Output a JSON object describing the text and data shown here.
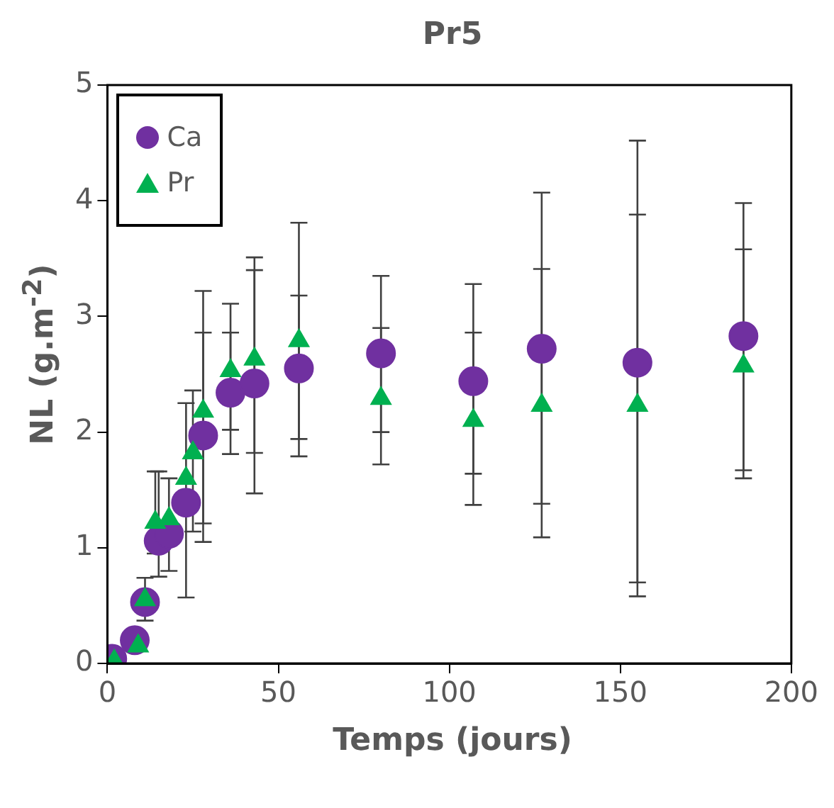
{
  "chart_data": {
    "type": "scatter",
    "title": "Pr5",
    "xlabel": "Temps (jours)",
    "ylabel": "NL (g.m$^{-2}$)",
    "xlim": [
      0,
      200
    ],
    "xticks": [
      0,
      50,
      100,
      150,
      200
    ],
    "ylim": [
      0,
      5
    ],
    "yticks": [
      0,
      1,
      2,
      3,
      4,
      5
    ],
    "grid": false,
    "legend": "top left",
    "series": [
      {
        "name": "Ca",
        "color": "#7030a0",
        "marker": "circle",
        "x": [
          1.4,
          8,
          11,
          15,
          18,
          23,
          28,
          36,
          43,
          56,
          80,
          107,
          127,
          155,
          186
        ],
        "values": [
          0.04,
          0.2,
          0.53,
          1.06,
          1.12,
          1.39,
          1.97,
          2.34,
          2.42,
          2.55,
          2.68,
          2.44,
          2.72,
          2.6,
          2.83
        ],
        "errors": [
          null,
          null,
          [
            0.37,
            0.74
          ],
          [
            0.75,
            1.66
          ],
          null,
          [
            0.57,
            2.25
          ],
          [
            1.05,
            2.86
          ],
          [
            1.81,
            2.86
          ],
          [
            1.47,
            3.4
          ],
          [
            1.94,
            3.18
          ],
          [
            2.0,
            3.35
          ],
          [
            1.64,
            3.28
          ],
          [
            1.38,
            4.07
          ],
          [
            0.7,
            4.52
          ],
          [
            1.67,
            3.98
          ]
        ]
      },
      {
        "name": "Pr",
        "color": "#00b050",
        "marker": "triangle",
        "x": [
          2,
          9,
          11,
          14,
          18,
          23,
          25,
          28,
          36,
          43,
          56,
          80,
          107,
          127,
          155,
          186
        ],
        "values": [
          0.02,
          0.15,
          0.55,
          1.22,
          1.25,
          1.6,
          1.82,
          2.18,
          2.53,
          2.63,
          2.79,
          2.29,
          2.1,
          2.23,
          2.23,
          2.57
        ],
        "errors": [
          null,
          null,
          null,
          [
            0.95,
            1.66
          ],
          [
            0.8,
            1.6
          ],
          null,
          [
            1.14,
            2.36
          ],
          [
            1.21,
            3.22
          ],
          [
            2.02,
            3.11
          ],
          [
            1.82,
            3.51
          ],
          [
            1.79,
            3.81
          ],
          [
            1.72,
            2.9
          ],
          [
            1.37,
            2.86
          ],
          [
            1.09,
            3.41
          ],
          [
            0.58,
            3.88
          ],
          [
            1.6,
            3.58
          ]
        ]
      }
    ]
  }
}
